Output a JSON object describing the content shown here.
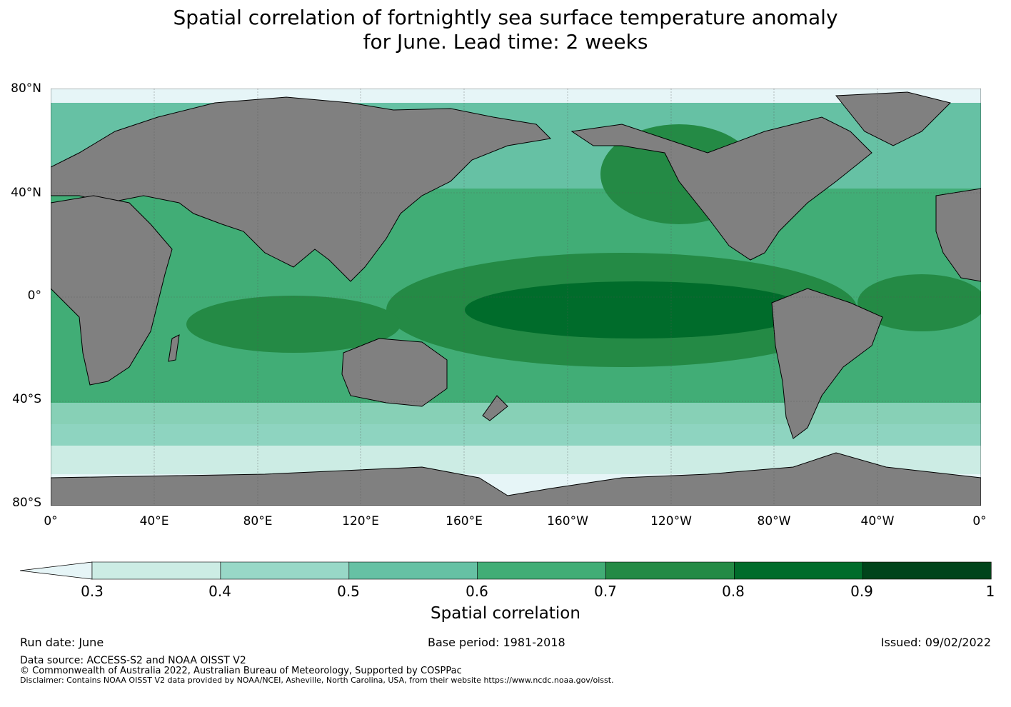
{
  "title_line1": "Spatial correlation of fortnightly sea surface temperature anomaly",
  "title_line2": "for June. Lead time: 2 weeks",
  "lat_labels": [
    "80°N",
    "40°N",
    "0°",
    "40°S",
    "80°S"
  ],
  "lon_labels": [
    "0°",
    "40°E",
    "80°E",
    "120°E",
    "160°E",
    "160°W",
    "120°W",
    "80°W",
    "40°W",
    "0°"
  ],
  "colorbar": {
    "label": "Spatial correlation",
    "ticks": [
      "0.3",
      "0.4",
      "0.5",
      "0.6",
      "0.7",
      "0.8",
      "0.9",
      "1"
    ],
    "colors": [
      "#e6f5f7",
      "#ccece4",
      "#98d8c7",
      "#66c1a4",
      "#41ad76",
      "#248a45",
      "#006c2b",
      "#00441b"
    ]
  },
  "colors": {
    "land": "#808080",
    "ocean_low": "#e6f5f7",
    "gridline": "#555555"
  },
  "footer": {
    "run_date": "Run date: June",
    "base_period": "Base period: 1981-2018",
    "issued": "Issued: 09/02/2022",
    "data_source": "Data source: ACCESS-S2 and NOAA OISST V2",
    "copyright": "© Commonwealth of Australia 2022, Australian Bureau of Meteorology, Supported by COSPPac",
    "disclaimer": "Disclaimer: Contains NOAA OISST V2 data provided by NOAA/NCEI, Asheville, North Carolina, USA, from their website https://www.ncdc.noaa.gov/oisst."
  }
}
